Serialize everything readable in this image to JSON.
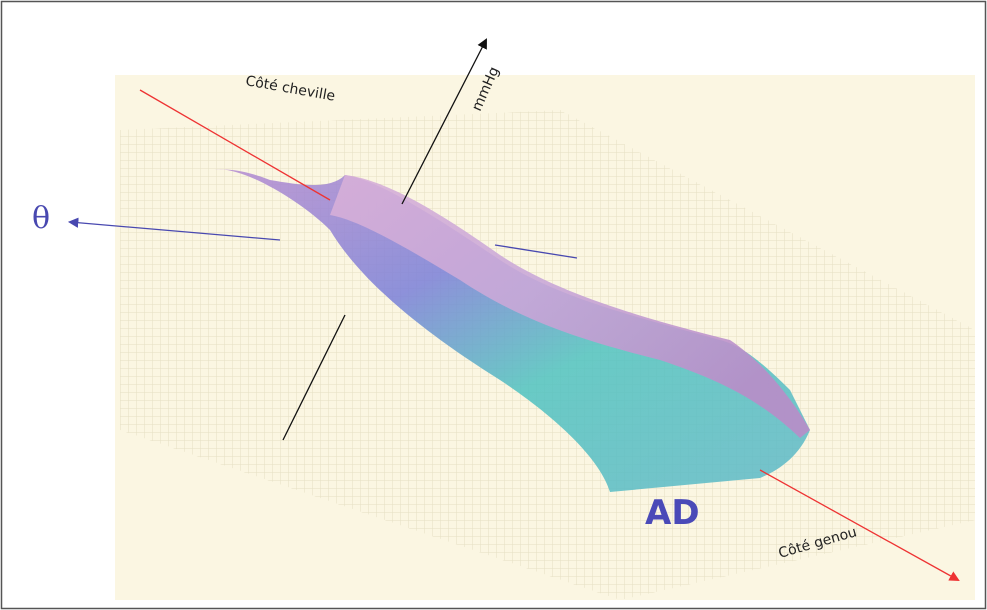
{
  "labels": {
    "ankle_side": "Côté cheville",
    "pressure_axis": "mmHg",
    "angle_axis": "θ",
    "leg": "AD",
    "knee_side": "Côté genou"
  }
}
